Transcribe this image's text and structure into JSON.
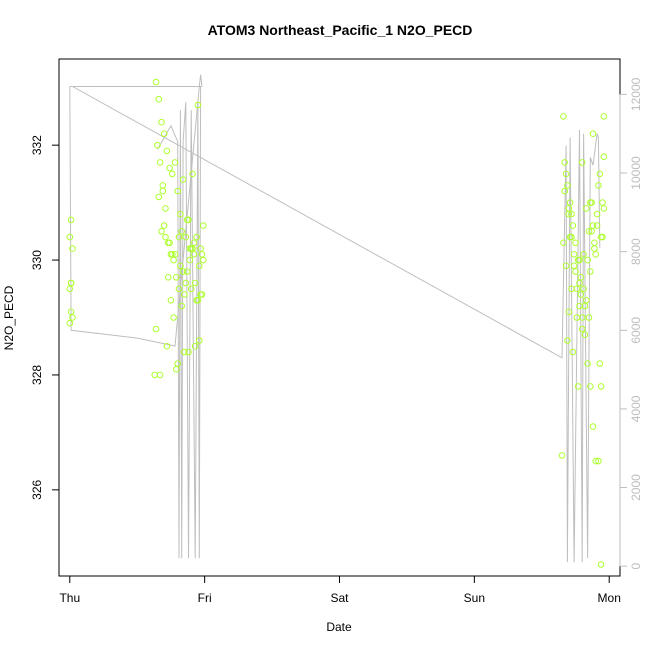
{
  "chart_data": {
    "type": "scatter",
    "title": "ATOM3 Northeast_Pacific_1 N2O_PECD",
    "xlabel": "Date",
    "ylabel": "N2O_PECD",
    "x_ticks": [
      "Thu",
      "Fri",
      "Sat",
      "Sun",
      "Mon"
    ],
    "xlim": [
      -0.08,
      4.08
    ],
    "ylim": [
      324.5,
      333.5
    ],
    "y_ticks": [
      326,
      328,
      330,
      332
    ],
    "y2lim": [
      -250,
      12900
    ],
    "y2_ticks": [
      0,
      2000,
      4000,
      6000,
      8000,
      10000,
      12000
    ],
    "grid": false,
    "legend": "none",
    "colors": {
      "points": "#adff2f",
      "line": "#bebebe",
      "axis": "#000000",
      "right_axis": "#bebebe"
    },
    "series": [
      {
        "type": "line",
        "axis": "right",
        "x": [
          0.0,
          0.01,
          0.5,
          0.78,
          0.96,
          0.97,
          0.98,
          0.0,
          0.02,
          3.65,
          3.68,
          3.69,
          3.71,
          3.74,
          3.78,
          3.8,
          3.81,
          3.84,
          3.86,
          3.88,
          3.91,
          3.92,
          3.93
        ],
        "values": [
          12200,
          6000,
          5800,
          5600,
          12200,
          12500,
          12200,
          12200,
          12200,
          5300,
          10700,
          100,
          10900,
          100,
          11100,
          100,
          11000,
          200,
          10400,
          10200,
          11000,
          10900,
          8100
        ]
      },
      {
        "type": "line",
        "axis": "right",
        "x": [
          0.65,
          0.7,
          0.75,
          0.8,
          0.81,
          0.82,
          0.83,
          0.84,
          0.86,
          0.88,
          0.9,
          0.91,
          0.93,
          0.95,
          0.96,
          0.97
        ],
        "values": [
          10600,
          10900,
          11200,
          10800,
          200,
          11600,
          200,
          10800,
          11800,
          200,
          11600,
          8000,
          200,
          11800,
          200,
          12200
        ]
      }
    ],
    "points": {
      "axis": "left",
      "x": [
        0.0,
        0.01,
        0.02,
        0.01,
        0.0,
        0.0,
        0.01,
        0.02,
        0.01,
        0.64,
        0.66,
        0.68,
        0.7,
        0.72,
        0.74,
        0.76,
        0.78,
        0.8,
        0.82,
        0.84,
        0.86,
        0.88,
        0.9,
        0.92,
        0.94,
        0.96,
        0.98,
        0.65,
        0.67,
        0.69,
        0.71,
        0.73,
        0.75,
        0.77,
        0.79,
        0.81,
        0.83,
        0.85,
        0.87,
        0.89,
        0.91,
        0.93,
        0.95,
        0.97,
        0.99,
        0.66,
        0.7,
        0.74,
        0.78,
        0.82,
        0.86,
        0.9,
        0.94,
        0.98,
        0.64,
        0.72,
        0.8,
        0.88,
        0.96,
        0.68,
        0.76,
        0.84,
        0.92,
        0.63,
        0.67,
        0.71,
        0.75,
        0.79,
        0.83,
        0.87,
        0.91,
        0.95,
        0.99,
        0.69,
        0.77,
        0.85,
        0.93,
        0.73,
        0.81,
        0.89,
        0.97,
        3.66,
        3.68,
        3.7,
        3.72,
        3.74,
        3.76,
        3.78,
        3.8,
        3.82,
        3.84,
        3.86,
        3.88,
        3.9,
        3.92,
        3.94,
        3.96,
        3.67,
        3.69,
        3.71,
        3.73,
        3.75,
        3.77,
        3.79,
        3.81,
        3.83,
        3.85,
        3.87,
        3.89,
        3.91,
        3.93,
        3.95,
        3.66,
        3.7,
        3.74,
        3.78,
        3.82,
        3.86,
        3.9,
        3.94,
        3.68,
        3.72,
        3.76,
        3.8,
        3.84,
        3.88,
        3.92,
        3.96,
        3.67,
        3.71,
        3.75,
        3.79,
        3.83,
        3.87,
        3.91,
        3.95,
        3.69,
        3.73,
        3.77,
        3.81,
        3.85,
        3.89,
        3.93,
        3.65,
        3.72,
        3.8,
        3.88,
        3.96,
        3.7,
        3.78,
        3.86,
        3.94
      ],
      "y": [
        330.4,
        330.7,
        330.2,
        329.6,
        329.5,
        328.9,
        329.1,
        329.0,
        329.6,
        333.1,
        332.8,
        332.4,
        332.2,
        331.9,
        331.6,
        331.5,
        331.7,
        331.2,
        330.8,
        331.4,
        330.4,
        330.7,
        330.2,
        330.1,
        330.4,
        329.9,
        330.1,
        332.0,
        331.7,
        331.3,
        330.9,
        330.3,
        330.1,
        330.0,
        329.7,
        329.5,
        329.2,
        329.4,
        329.8,
        330.0,
        330.2,
        329.6,
        329.3,
        330.2,
        330.0,
        331.1,
        330.6,
        330.3,
        330.1,
        329.9,
        329.6,
        329.5,
        329.3,
        329.4,
        328.8,
        328.5,
        328.2,
        328.4,
        328.6,
        330.5,
        330.1,
        329.8,
        330.3,
        328.0,
        328.0,
        330.4,
        329.3,
        328.1,
        330.5,
        330.7,
        331.5,
        332.7,
        330.6,
        331.2,
        329.0,
        328.4,
        328.5,
        329.7,
        330.4,
        330.2,
        329.4,
        332.5,
        331.5,
        330.9,
        330.4,
        329.9,
        329.5,
        329.2,
        329.0,
        328.7,
        328.2,
        327.8,
        327.1,
        326.5,
        326.5,
        324.7,
        330.9,
        331.7,
        331.3,
        331.0,
        330.6,
        330.3,
        330.0,
        329.7,
        329.5,
        329.3,
        329.0,
        330.5,
        330.2,
        330.8,
        331.5,
        331.0,
        330.3,
        330.8,
        330.1,
        329.6,
        329.2,
        329.8,
        330.1,
        330.4,
        329.9,
        329.5,
        329.0,
        328.8,
        330.0,
        330.6,
        331.3,
        331.8,
        331.2,
        330.4,
        329.8,
        329.4,
        330.9,
        331.0,
        330.6,
        330.4,
        328.6,
        328.4,
        327.8,
        330.1,
        330.5,
        330.3,
        328.2,
        326.6,
        330.8,
        331.7,
        332.2,
        332.5,
        329.1,
        330.0,
        331.0,
        327.8
      ]
    }
  }
}
